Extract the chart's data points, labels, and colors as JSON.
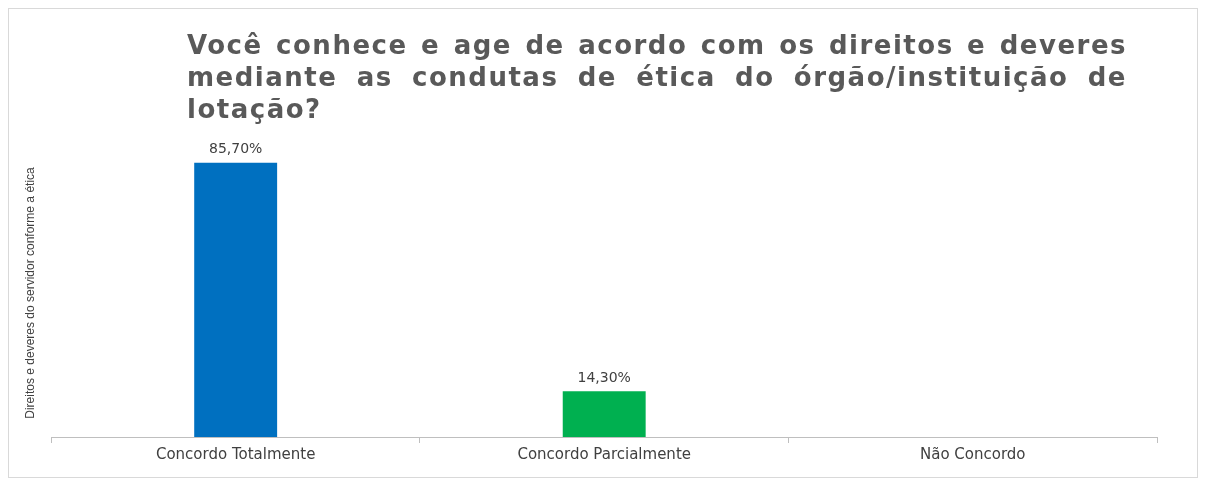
{
  "chart_data": {
    "type": "bar",
    "title": "Você conhece e age de acordo com os direitos e deveres mediante as condutas de ética do órgão/instituição de lotação?",
    "ylabel": "Direitos e deveres do servidor conforme a ética",
    "categories": [
      "Concordo Totalmente",
      "Concordo Parcialmente",
      "Não Concordo"
    ],
    "values": [
      85.7,
      14.3,
      0
    ],
    "colors": [
      "#0070c0",
      "#00b050",
      "#a5a5a5"
    ],
    "value_labels": [
      "85,70%",
      "14,30%",
      null
    ],
    "grid": false,
    "legend": false
  }
}
